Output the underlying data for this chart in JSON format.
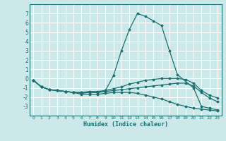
{
  "background_color": "#cce8e8",
  "grid_color": "#ffffff",
  "line_color": "#1a7070",
  "xlabel": "Humidex (Indice chaleur)",
  "ylim": [
    -4,
    8
  ],
  "xlim": [
    -0.5,
    23.5
  ],
  "yticks": [
    -3,
    -2,
    -1,
    0,
    1,
    2,
    3,
    4,
    5,
    6,
    7
  ],
  "xticks": [
    0,
    1,
    2,
    3,
    4,
    5,
    6,
    7,
    8,
    9,
    10,
    11,
    12,
    13,
    14,
    15,
    16,
    17,
    18,
    19,
    20,
    21,
    22,
    23
  ],
  "lines": [
    {
      "x": [
        0,
        1,
        2,
        3,
        4,
        5,
        6,
        7,
        8,
        9,
        10,
        11,
        12,
        13,
        14,
        15,
        16,
        17,
        18,
        20,
        21,
        22,
        23
      ],
      "y": [
        -0.2,
        -0.9,
        -1.2,
        -1.3,
        -1.4,
        -1.5,
        -1.6,
        -1.5,
        -1.5,
        -1.3,
        0.3,
        3.0,
        5.3,
        7.0,
        6.7,
        6.2,
        5.7,
        3.0,
        0.4,
        -1.0,
        -3.0,
        -3.2,
        -3.4
      ]
    },
    {
      "x": [
        0,
        1,
        2,
        3,
        4,
        5,
        6,
        7,
        8,
        9,
        10,
        11,
        12,
        13,
        14,
        15,
        16,
        17,
        18,
        19,
        20,
        21,
        22,
        23
      ],
      "y": [
        -0.2,
        -0.9,
        -1.2,
        -1.3,
        -1.4,
        -1.5,
        -1.5,
        -1.4,
        -1.4,
        -1.3,
        -1.1,
        -0.9,
        -0.6,
        -0.4,
        -0.2,
        -0.1,
        0.0,
        0.0,
        0.0,
        -0.1,
        -0.5,
        -1.3,
        -1.8,
        -2.1
      ]
    },
    {
      "x": [
        0,
        1,
        2,
        3,
        4,
        5,
        6,
        7,
        8,
        9,
        10,
        11,
        12,
        13,
        14,
        15,
        16,
        17,
        18,
        19,
        20,
        21,
        22,
        23
      ],
      "y": [
        -0.2,
        -0.9,
        -1.2,
        -1.3,
        -1.4,
        -1.5,
        -1.5,
        -1.5,
        -1.5,
        -1.4,
        -1.3,
        -1.2,
        -1.1,
        -1.0,
        -0.9,
        -0.8,
        -0.7,
        -0.6,
        -0.5,
        -0.5,
        -0.8,
        -1.5,
        -2.1,
        -2.5
      ]
    },
    {
      "x": [
        0,
        1,
        2,
        3,
        4,
        5,
        6,
        7,
        8,
        9,
        10,
        11,
        12,
        13,
        14,
        15,
        16,
        17,
        18,
        19,
        20,
        21,
        22,
        23
      ],
      "y": [
        -0.2,
        -0.9,
        -1.2,
        -1.3,
        -1.4,
        -1.5,
        -1.7,
        -1.7,
        -1.7,
        -1.6,
        -1.5,
        -1.5,
        -1.5,
        -1.6,
        -1.8,
        -2.0,
        -2.2,
        -2.5,
        -2.8,
        -3.0,
        -3.2,
        -3.3,
        -3.4,
        -3.5
      ]
    }
  ]
}
